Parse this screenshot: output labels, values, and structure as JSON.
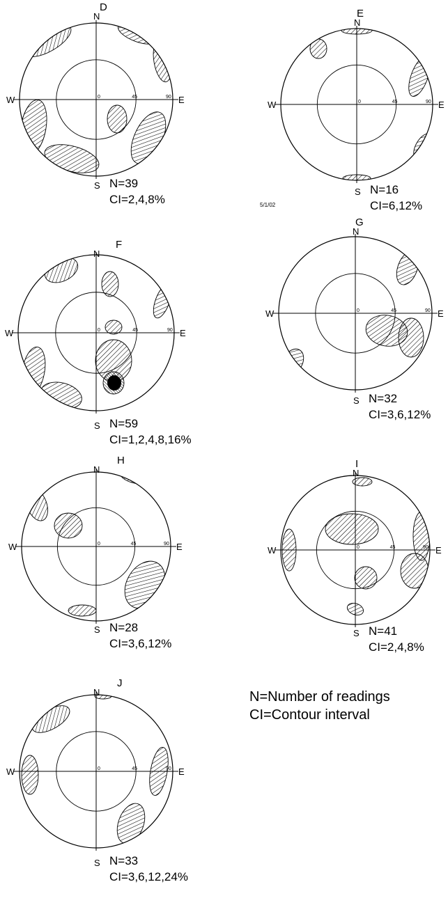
{
  "net_labels": {
    "north": "N",
    "south": "S",
    "west": "W",
    "east": "E",
    "tick_center": "0",
    "tick_mid": "45",
    "tick_edge": "90"
  },
  "stereonets": [
    {
      "id": "D",
      "letter": "D",
      "n": "N=39",
      "ci": "CI=2,4,8%"
    },
    {
      "id": "E",
      "letter": "E",
      "n": "N=16",
      "ci": "CI=6,12%"
    },
    {
      "id": "F",
      "letter": "F",
      "n": "N=59",
      "ci": "CI=1,2,4,8,16%"
    },
    {
      "id": "G",
      "letter": "G",
      "n": "N=32",
      "ci": "CI=3,6,12%"
    },
    {
      "id": "H",
      "letter": "H",
      "n": "N=28",
      "ci": "CI=3,6,12%"
    },
    {
      "id": "I",
      "letter": "I",
      "n": "N=41",
      "ci": "CI=2,4,8%"
    },
    {
      "id": "J",
      "letter": "J",
      "n": "N=33",
      "ci": "CI=3,6,12,24%"
    }
  ],
  "date_stamp": "5/1/02",
  "legend": {
    "line1": "N=Number of readings",
    "line2": "CI=Contour interval"
  }
}
